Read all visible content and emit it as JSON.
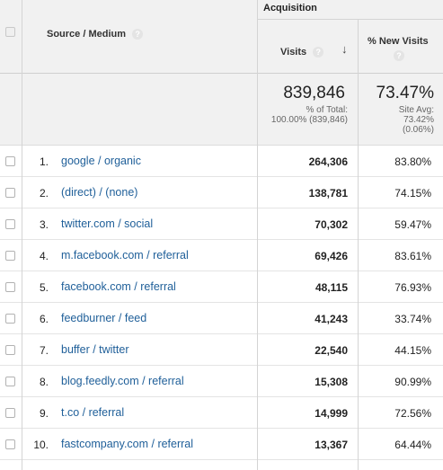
{
  "header": {
    "group_label": "Acquisition",
    "source_medium_label": "Source / Medium",
    "visits_label": "Visits",
    "new_visits_label": "% New Visits",
    "help_glyph": "?",
    "sort_icon": "arrow-down-icon",
    "sort_glyph": "↓"
  },
  "summary": {
    "visits_total": "839,846",
    "visits_note_1": "% of Total:",
    "visits_note_2": "100.00% (839,846)",
    "new_visits_total": "73.47%",
    "new_visits_note_1": "Site Avg:",
    "new_visits_note_2": "73.42%",
    "new_visits_note_3": "(0.06%)"
  },
  "rows": [
    {
      "rank": "1.",
      "source": "google / organic",
      "visits": "264,306",
      "new_visits": "83.80%"
    },
    {
      "rank": "2.",
      "source": "(direct) / (none)",
      "visits": "138,781",
      "new_visits": "74.15%"
    },
    {
      "rank": "3.",
      "source": "twitter.com / social",
      "visits": "70,302",
      "new_visits": "59.47%"
    },
    {
      "rank": "4.",
      "source": "m.facebook.com / referral",
      "visits": "69,426",
      "new_visits": "83.61%"
    },
    {
      "rank": "5.",
      "source": "facebook.com / referral",
      "visits": "48,115",
      "new_visits": "76.93%"
    },
    {
      "rank": "6.",
      "source": "feedburner / feed",
      "visits": "41,243",
      "new_visits": "33.74%"
    },
    {
      "rank": "7.",
      "source": "buffer / twitter",
      "visits": "22,540",
      "new_visits": "44.15%"
    },
    {
      "rank": "8.",
      "source": "blog.feedly.com / referral",
      "visits": "15,308",
      "new_visits": "90.99%"
    },
    {
      "rank": "9.",
      "source": "t.co / referral",
      "visits": "14,999",
      "new_visits": "72.56%"
    },
    {
      "rank": "10.",
      "source": "fastcompany.com / referral",
      "visits": "13,367",
      "new_visits": "64.44%"
    }
  ]
}
